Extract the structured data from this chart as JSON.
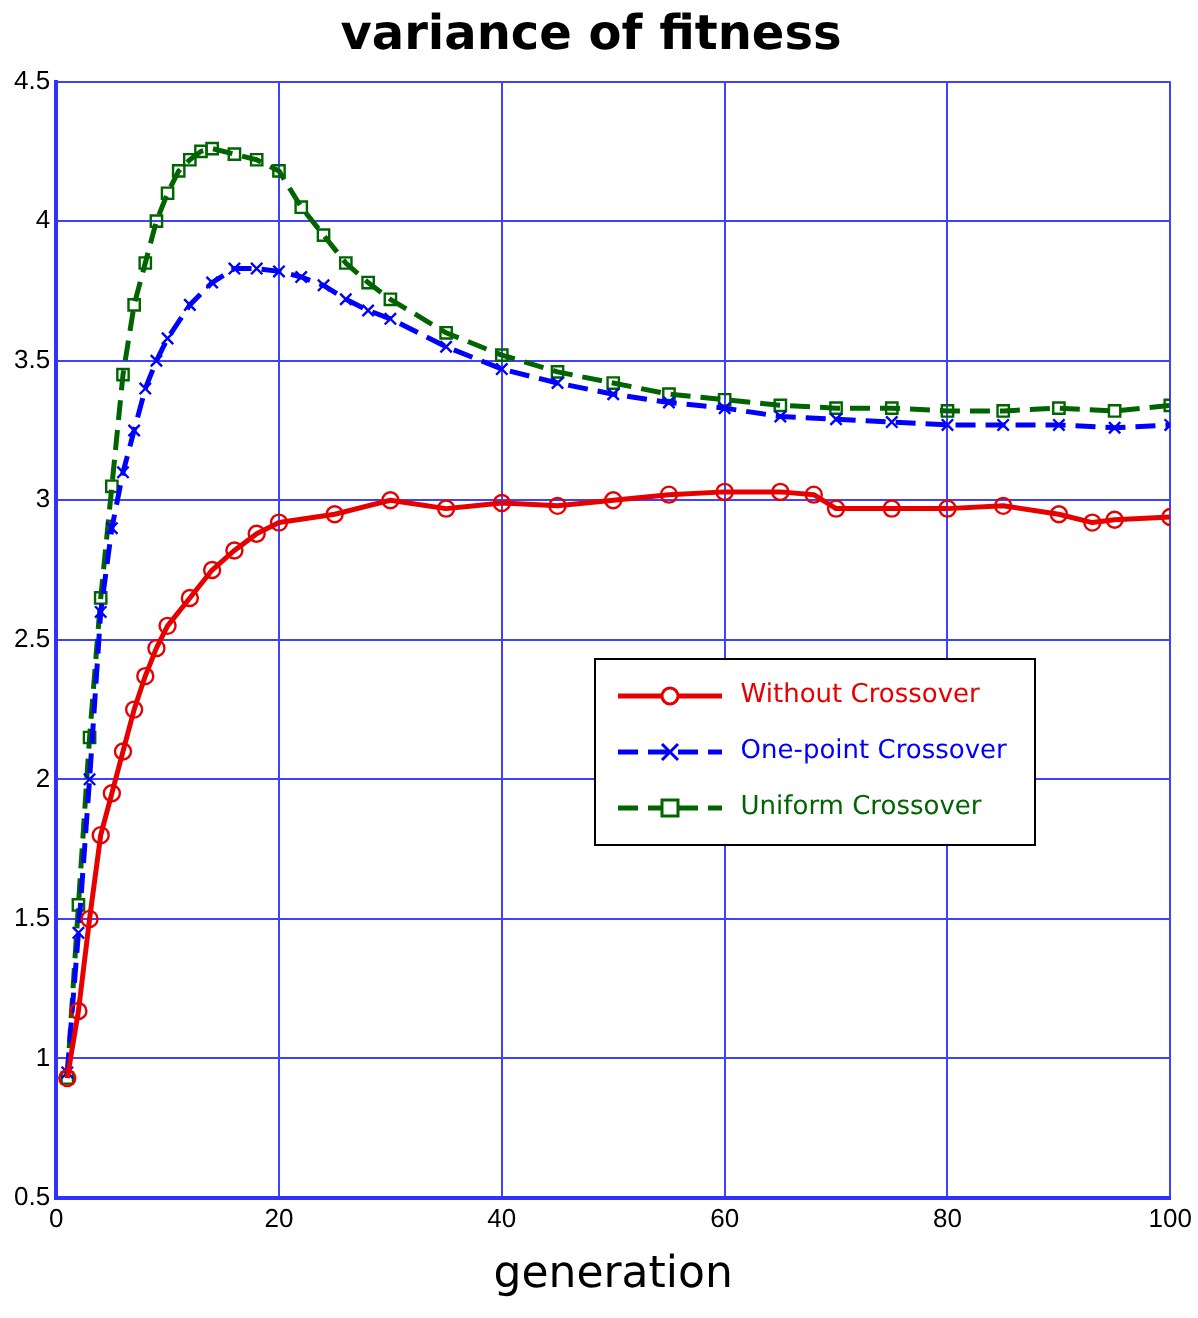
{
  "chart_data": {
    "type": "line",
    "title": "variance of fitness",
    "xlabel": "generation",
    "xlim": [
      0,
      100
    ],
    "xticks": [
      0,
      20,
      40,
      60,
      80,
      100
    ],
    "ylim": [
      0.5,
      4.5
    ],
    "yticks": [
      0.5,
      1,
      1.5,
      2,
      2.5,
      3,
      3.5,
      4,
      4.5
    ],
    "grid": true,
    "legend": "right",
    "series": [
      {
        "name": "Without Crossover",
        "color": "#e60000",
        "marker": "circle",
        "line_style": "solid",
        "x": [
          1,
          2,
          3,
          4,
          5,
          6,
          7,
          8,
          9,
          10,
          12,
          14,
          16,
          18,
          20,
          25,
          30,
          35,
          40,
          45,
          50,
          55,
          60,
          65,
          68,
          70,
          75,
          80,
          85,
          90,
          93,
          95,
          100
        ],
        "values": [
          0.93,
          1.17,
          1.5,
          1.8,
          1.95,
          2.1,
          2.25,
          2.37,
          2.47,
          2.55,
          2.65,
          2.75,
          2.82,
          2.88,
          2.92,
          2.95,
          3.0,
          2.97,
          2.99,
          2.98,
          3.0,
          3.02,
          3.03,
          3.03,
          3.02,
          2.97,
          2.97,
          2.97,
          2.98,
          2.95,
          2.92,
          2.93,
          2.94
        ]
      },
      {
        "name": "One-point Crossover",
        "color": "#0000ff",
        "marker": "cross",
        "line_style": "dashed",
        "x": [
          1,
          2,
          3,
          4,
          5,
          6,
          7,
          8,
          9,
          10,
          12,
          14,
          16,
          18,
          20,
          22,
          24,
          26,
          28,
          30,
          35,
          40,
          45,
          50,
          55,
          60,
          65,
          70,
          75,
          80,
          85,
          90,
          95,
          100
        ],
        "values": [
          0.95,
          1.45,
          2.0,
          2.6,
          2.9,
          3.1,
          3.25,
          3.4,
          3.5,
          3.58,
          3.7,
          3.78,
          3.83,
          3.83,
          3.82,
          3.8,
          3.77,
          3.72,
          3.68,
          3.65,
          3.55,
          3.47,
          3.42,
          3.38,
          3.35,
          3.33,
          3.3,
          3.29,
          3.28,
          3.27,
          3.27,
          3.27,
          3.26,
          3.27
        ]
      },
      {
        "name": "Uniform Crossover",
        "color": "#006400",
        "marker": "square",
        "line_style": "dashed",
        "x": [
          1,
          2,
          3,
          4,
          5,
          6,
          7,
          8,
          9,
          10,
          11,
          12,
          13,
          14,
          16,
          18,
          20,
          22,
          24,
          26,
          28,
          30,
          35,
          40,
          45,
          50,
          55,
          60,
          65,
          70,
          75,
          80,
          85,
          90,
          95,
          100
        ],
        "values": [
          0.93,
          1.55,
          2.15,
          2.65,
          3.05,
          3.45,
          3.7,
          3.85,
          4.0,
          4.1,
          4.18,
          4.22,
          4.25,
          4.26,
          4.24,
          4.22,
          4.18,
          4.05,
          3.95,
          3.85,
          3.78,
          3.72,
          3.6,
          3.52,
          3.46,
          3.42,
          3.38,
          3.36,
          3.34,
          3.33,
          3.33,
          3.32,
          3.32,
          3.33,
          3.32,
          3.34
        ]
      }
    ]
  }
}
